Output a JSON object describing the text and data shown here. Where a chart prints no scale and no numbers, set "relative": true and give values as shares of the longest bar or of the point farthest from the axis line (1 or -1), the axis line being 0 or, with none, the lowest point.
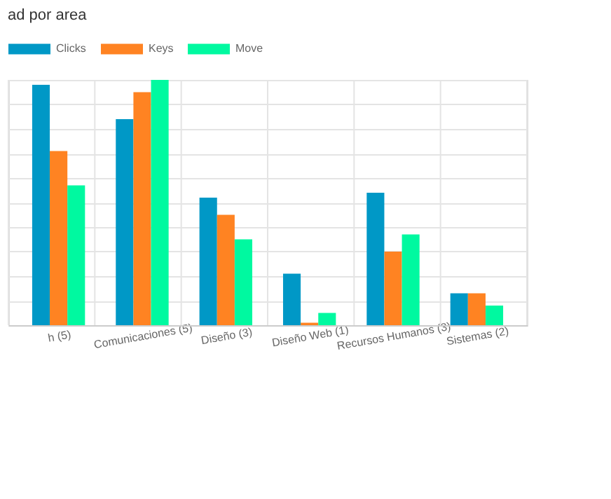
{
  "chart_data": {
    "type": "bar",
    "title": "ad por area",
    "relative": true,
    "categories": [
      "h (5)",
      "Comunicaciones (5)",
      "Diseño (3)",
      "Diseño Web (1)",
      "Recursos Humanos (3)",
      "Sistemas (2)"
    ],
    "series": [
      {
        "name": "Clicks",
        "color": "#0098c6",
        "values": [
          0.98,
          0.84,
          0.52,
          0.21,
          0.54,
          0.13
        ]
      },
      {
        "name": "Keys",
        "color": "#ff8322",
        "values": [
          0.71,
          0.95,
          0.45,
          0.01,
          0.3,
          0.13
        ]
      },
      {
        "name": "Move",
        "color": "#00f9a0",
        "values": [
          0.57,
          1.0,
          0.35,
          0.05,
          0.37,
          0.08
        ]
      }
    ],
    "grid": true,
    "legend": "top left"
  }
}
